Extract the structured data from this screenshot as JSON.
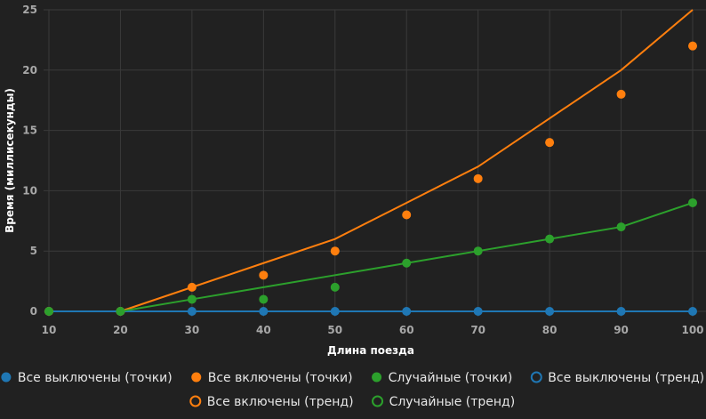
{
  "chart_data": {
    "type": "line",
    "xlabel": "Длина поезда",
    "ylabel": "Время (миллисекунды)",
    "x": [
      10,
      20,
      30,
      40,
      50,
      60,
      70,
      80,
      90,
      100
    ],
    "xticks": [
      "10",
      "20",
      "30",
      "40",
      "50",
      "60",
      "70",
      "80",
      "90",
      "100"
    ],
    "yticks": [
      "0",
      "5",
      "10",
      "15",
      "20",
      "25"
    ],
    "xlim": [
      10,
      100
    ],
    "ylim": [
      0,
      25
    ],
    "grid": true,
    "legend_position": "bottom",
    "series": [
      {
        "name": "Все выключены (точки)",
        "kind": "points",
        "color": "#1f77b4",
        "values": [
          0,
          0,
          0,
          0,
          0,
          0,
          0,
          0,
          0,
          0
        ]
      },
      {
        "name": "Все включены (точки)",
        "kind": "points",
        "color": "#ff7f0e",
        "values": [
          0,
          0,
          2,
          3,
          5,
          8,
          11,
          14,
          18,
          22
        ]
      },
      {
        "name": "Случайные (точки)",
        "kind": "points",
        "color": "#2ca02c",
        "values": [
          0,
          0,
          1,
          1,
          2,
          4,
          5,
          6,
          7,
          9
        ]
      },
      {
        "name": "Все выключены (тренд)",
        "kind": "line",
        "color": "#1f77b4",
        "values": [
          0,
          0,
          0,
          0,
          0,
          0,
          0,
          0,
          0,
          0
        ]
      },
      {
        "name": "Все включены (тренд)",
        "kind": "line",
        "color": "#ff7f0e",
        "values": [
          null,
          0,
          2,
          4,
          6,
          9,
          12,
          16,
          20,
          25
        ]
      },
      {
        "name": "Случайные (тренд)",
        "kind": "line",
        "color": "#2ca02c",
        "values": [
          null,
          0,
          1,
          2,
          3,
          4,
          5,
          6,
          7,
          9
        ]
      }
    ]
  }
}
